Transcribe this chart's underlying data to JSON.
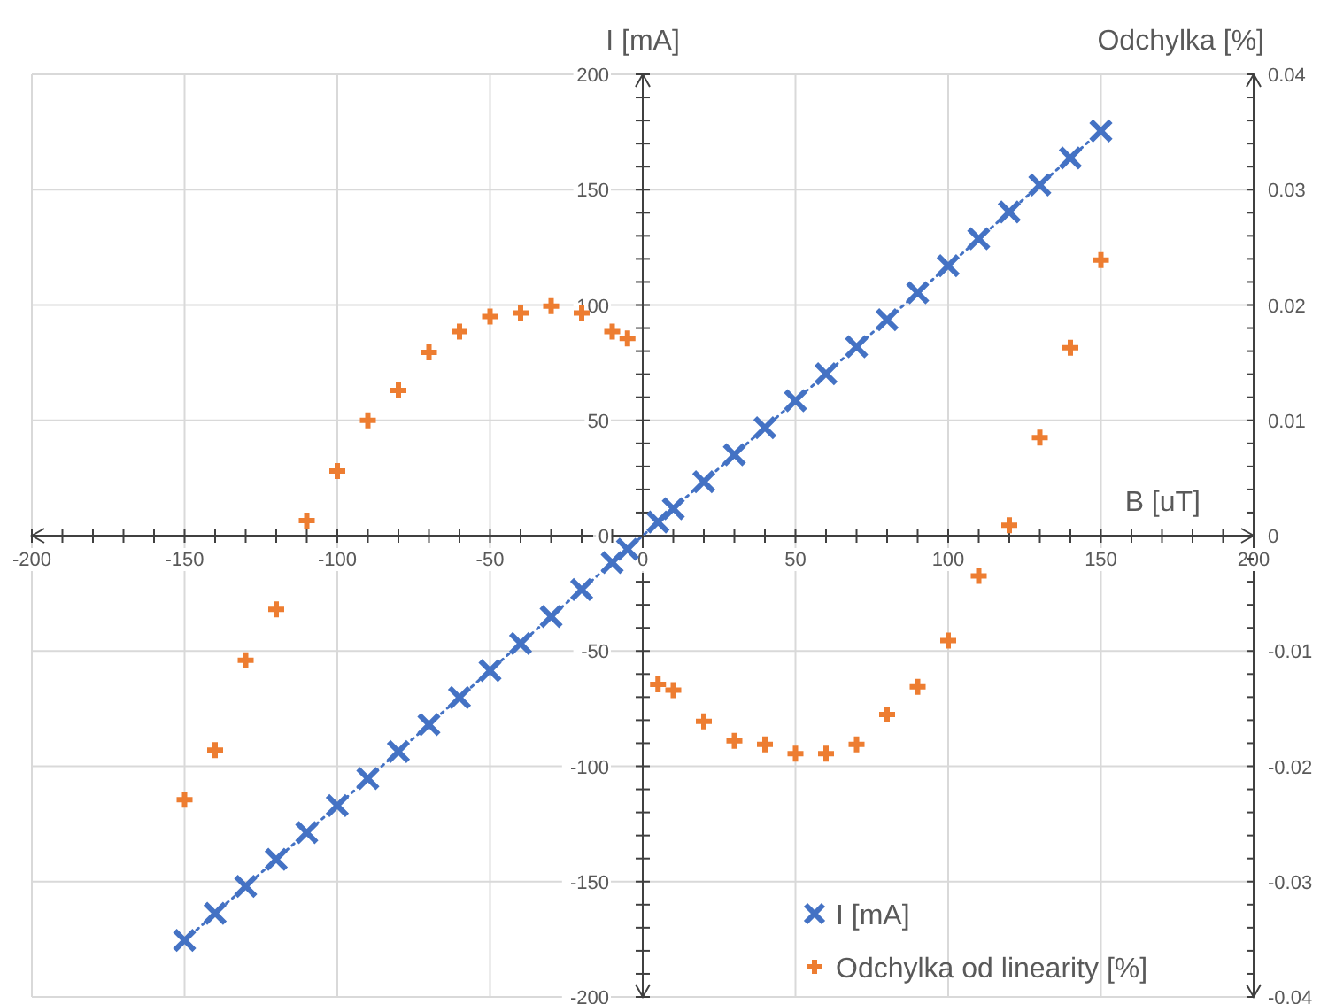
{
  "chart_data": {
    "type": "scatter",
    "xlabel": "B [uT]",
    "ylabel": "I [mA]",
    "y2label": "Odchylka [%]",
    "xlim": [
      -200,
      200
    ],
    "ylim": [
      -200,
      200
    ],
    "y2lim": [
      -0.04,
      0.04
    ],
    "xticks": [
      -200,
      {
        "value": -190,
        "label": null
      },
      {
        "value": -180,
        "label": null
      },
      {
        "value": -170,
        "label": null
      },
      {
        "value": -160,
        "label": null
      },
      -150,
      {
        "value": -140,
        "label": null
      },
      {
        "value": -130,
        "label": null
      },
      {
        "value": -120,
        "label": null
      },
      {
        "value": -110,
        "label": null
      },
      -100,
      {
        "value": -90,
        "label": null
      },
      {
        "value": -80,
        "label": null
      },
      {
        "value": -70,
        "label": null
      },
      {
        "value": -60,
        "label": null
      },
      -50,
      {
        "value": -40,
        "label": null
      },
      {
        "value": -30,
        "label": null
      },
      {
        "value": -20,
        "label": null
      },
      {
        "value": -10,
        "label": null
      },
      0,
      {
        "value": 10,
        "label": null
      },
      {
        "value": 20,
        "label": null
      },
      {
        "value": 30,
        "label": null
      },
      {
        "value": 40,
        "label": null
      },
      50,
      {
        "value": 60,
        "label": null
      },
      {
        "value": 70,
        "label": null
      },
      {
        "value": 80,
        "label": null
      },
      {
        "value": 90,
        "label": null
      },
      100,
      {
        "value": 110,
        "label": null
      },
      {
        "value": 120,
        "label": null
      },
      {
        "value": 130,
        "label": null
      },
      {
        "value": 140,
        "label": null
      },
      150,
      {
        "value": 160,
        "label": null
      },
      {
        "value": 170,
        "label": null
      },
      {
        "value": 180,
        "label": null
      },
      {
        "value": 190,
        "label": null
      },
      200
    ],
    "yticks": [
      -200,
      {
        "value": -190,
        "label": null
      },
      {
        "value": -180,
        "label": null
      },
      {
        "value": -170,
        "label": null
      },
      {
        "value": -160,
        "label": null
      },
      -150,
      {
        "value": -140,
        "label": null
      },
      {
        "value": -130,
        "label": null
      },
      {
        "value": -120,
        "label": null
      },
      {
        "value": -110,
        "label": null
      },
      -100,
      {
        "value": -90,
        "label": null
      },
      {
        "value": -80,
        "label": null
      },
      {
        "value": -70,
        "label": null
      },
      {
        "value": -60,
        "label": null
      },
      -50,
      {
        "value": -40,
        "label": null
      },
      {
        "value": -30,
        "label": null
      },
      {
        "value": -20,
        "label": null
      },
      {
        "value": -10,
        "label": null
      },
      0,
      {
        "value": 10,
        "label": null
      },
      {
        "value": 20,
        "label": null
      },
      {
        "value": 30,
        "label": null
      },
      {
        "value": 40,
        "label": null
      },
      50,
      {
        "value": 60,
        "label": null
      },
      {
        "value": 70,
        "label": null
      },
      {
        "value": 80,
        "label": null
      },
      {
        "value": 90,
        "label": null
      },
      100,
      {
        "value": 110,
        "label": null
      },
      {
        "value": 120,
        "label": null
      },
      {
        "value": 130,
        "label": null
      },
      {
        "value": 140,
        "label": null
      },
      150,
      {
        "value": 160,
        "label": null
      },
      {
        "value": 170,
        "label": null
      },
      {
        "value": 180,
        "label": null
      },
      {
        "value": 190,
        "label": null
      },
      200
    ],
    "y2ticks": [
      -0.04,
      {
        "value": -0.038,
        "label": null
      },
      {
        "value": -0.036,
        "label": null
      },
      {
        "value": -0.034,
        "label": null
      },
      {
        "value": -0.032,
        "label": null
      },
      -0.03,
      {
        "value": -0.028,
        "label": null
      },
      {
        "value": -0.026,
        "label": null
      },
      {
        "value": -0.024,
        "label": null
      },
      {
        "value": -0.022,
        "label": null
      },
      -0.02,
      {
        "value": -0.018,
        "label": null
      },
      {
        "value": -0.016,
        "label": null
      },
      {
        "value": -0.014,
        "label": null
      },
      {
        "value": -0.012,
        "label": null
      },
      -0.01,
      {
        "value": -0.008,
        "label": null
      },
      {
        "value": -0.006,
        "label": null
      },
      {
        "value": -0.004,
        "label": null
      },
      {
        "value": -0.002,
        "label": null
      },
      0,
      {
        "value": 0.002,
        "label": null
      },
      {
        "value": 0.004,
        "label": null
      },
      {
        "value": 0.006,
        "label": null
      },
      {
        "value": 0.008,
        "label": null
      },
      0.01,
      {
        "value": 0.012,
        "label": null
      },
      {
        "value": 0.014,
        "label": null
      },
      {
        "value": 0.016,
        "label": null
      },
      {
        "value": 0.018,
        "label": null
      },
      0.02,
      {
        "value": 0.022,
        "label": null
      },
      {
        "value": 0.024,
        "label": null
      },
      {
        "value": 0.026,
        "label": null
      },
      {
        "value": 0.028,
        "label": null
      },
      0.03,
      {
        "value": 0.032,
        "label": null
      },
      {
        "value": 0.034,
        "label": null
      },
      {
        "value": 0.036,
        "label": null
      },
      {
        "value": 0.038,
        "label": null
      },
      0.04
    ],
    "grid": true,
    "legend": "bottom right",
    "series": [
      {
        "name": "I [mA]",
        "type": "line",
        "marker": "cross",
        "line_style": "dotted",
        "color": "#4472c4",
        "x": [
          -150,
          -140,
          -130,
          -120,
          -110,
          -100,
          -90,
          -80,
          -70,
          -60,
          -50,
          -40,
          -30,
          -20,
          -10,
          -5,
          5,
          10,
          20,
          30,
          40,
          50,
          60,
          70,
          80,
          90,
          100,
          110,
          120,
          130,
          140,
          150
        ],
        "values": [
          -175.5,
          -163.8,
          -152.1,
          -140.4,
          -128.7,
          -117,
          -105.3,
          -93.6,
          -81.9,
          -70.2,
          -58.5,
          -46.8,
          -35.1,
          -23.4,
          -11.7,
          -5.9,
          5.9,
          11.7,
          23.4,
          35.1,
          46.8,
          58.5,
          70.2,
          81.9,
          93.6,
          105.3,
          117,
          128.7,
          140.4,
          152.1,
          163.8,
          175.5
        ]
      },
      {
        "name": "Odchylka od linearity [%]",
        "type": "scatter",
        "marker": "plus",
        "axis": "y2",
        "color": "#ed7d31",
        "x": [
          -150,
          -140,
          -130,
          -120,
          -110,
          -100,
          -90,
          -80,
          -70,
          -60,
          -50,
          -40,
          -30,
          -20,
          -10,
          -5,
          5,
          10,
          20,
          30,
          40,
          50,
          60,
          70,
          80,
          90,
          100,
          110,
          120,
          130,
          140,
          150
        ],
        "values": [
          -0.0229,
          -0.0186,
          -0.0108,
          -0.0064,
          0.0013,
          0.0056,
          0.01,
          0.0126,
          0.0159,
          0.0177,
          0.019,
          0.0193,
          0.0199,
          0.0193,
          0.0177,
          0.0171,
          -0.0129,
          -0.0134,
          -0.0161,
          -0.0178,
          -0.0181,
          -0.0189,
          -0.0189,
          -0.0181,
          -0.0155,
          -0.0131,
          -0.0091,
          -0.0035,
          0.0009,
          0.0085,
          0.0163,
          0.0239
        ]
      }
    ]
  }
}
